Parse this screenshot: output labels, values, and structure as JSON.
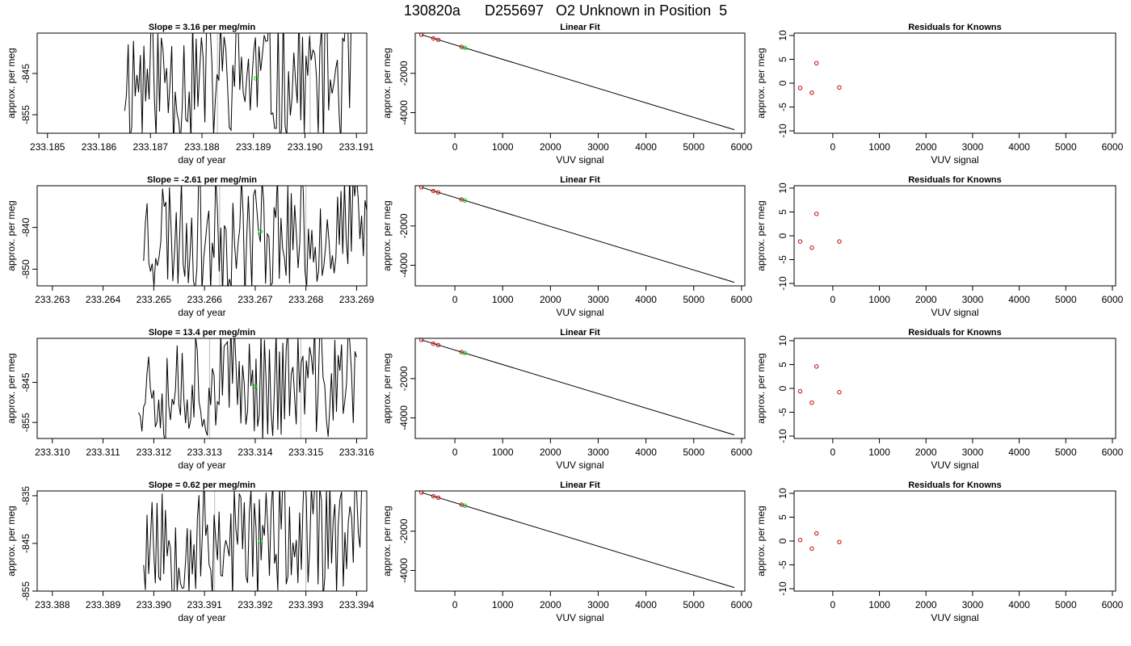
{
  "title": "130820a      D255697   O2 Unknown in Position  5",
  "colors": {
    "ink": "#000000",
    "highlight": "#00cc00",
    "known": "#cc0000",
    "vline": "#bbbbbb"
  },
  "rows": [
    {
      "timeseries": {
        "title": "Slope =  3.16  per meg/min",
        "xlabel": "day of year",
        "ylabel": "approx. per meg",
        "xlim": [
          233.1848,
          233.1912
        ],
        "ylim": [
          -859.5,
          -835.2
        ],
        "xticks": [
          "233.185",
          "233.186",
          "233.187",
          "233.188",
          "233.189",
          "233.190",
          "233.191"
        ],
        "yticks": [
          "-845",
          "-855"
        ],
        "seed": 11,
        "start": 233.1865,
        "end": 233.1909,
        "center": -846,
        "amplitude": 14,
        "vlines": [
          233.1883,
          233.1901
        ],
        "marker": [
          233.18905,
          -846.2
        ]
      },
      "fit": {
        "title": "Linear Fit",
        "xlabel": "VUV signal",
        "ylabel": "approx. per meg"
      },
      "residuals": {
        "title": "Residuals for Knowns",
        "xlabel": "VUV signal",
        "ylabel": "approx. per meg",
        "points": [
          [
            -700,
            -1.0
          ],
          [
            -450,
            -2.0
          ],
          [
            -350,
            4.2
          ],
          [
            140,
            -0.9
          ]
        ]
      }
    },
    {
      "timeseries": {
        "title": "Slope =  -2.61  per meg/min",
        "xlabel": "day of year",
        "ylabel": "approx. per meg",
        "xlim": [
          233.2627,
          233.2692
        ],
        "ylim": [
          -854,
          -830
        ],
        "xticks": [
          "233.263",
          "233.264",
          "233.265",
          "233.266",
          "233.267",
          "233.268",
          "233.269"
        ],
        "yticks": [
          "-840",
          "-850"
        ],
        "seed": 23,
        "start": 233.2648,
        "end": 233.2692,
        "center": -841,
        "amplitude": 12,
        "vlines": [
          233.2663,
          233.268
        ],
        "marker": [
          233.2671,
          -841.0
        ]
      },
      "fit": {
        "title": "Linear Fit",
        "xlabel": "VUV signal",
        "ylabel": "approx. per meg"
      },
      "residuals": {
        "title": "Residuals for Knowns",
        "xlabel": "VUV signal",
        "ylabel": "approx. per meg",
        "points": [
          [
            -700,
            -1.2
          ],
          [
            -450,
            -2.5
          ],
          [
            -350,
            4.6
          ],
          [
            140,
            -1.2
          ]
        ]
      }
    },
    {
      "timeseries": {
        "title": "Slope =  13.4  per meg/min",
        "xlabel": "day of year",
        "ylabel": "approx. per meg",
        "xlim": [
          233.3097,
          233.3162
        ],
        "ylim": [
          -859,
          -834
        ],
        "xticks": [
          "233.310",
          "233.311",
          "233.312",
          "233.313",
          "233.314",
          "233.315",
          "233.316"
        ],
        "yticks": [
          "-845",
          "-855"
        ],
        "seed": 37,
        "start": 233.3117,
        "end": 233.316,
        "center": -845,
        "amplitude": 12,
        "vlines": [
          233.3131,
          233.3149
        ],
        "marker": [
          233.314,
          -846.0
        ]
      },
      "fit": {
        "title": "Linear Fit",
        "xlabel": "VUV signal",
        "ylabel": "approx. per meg"
      },
      "residuals": {
        "title": "Residuals for Knowns",
        "xlabel": "VUV signal",
        "ylabel": "approx. per meg",
        "points": [
          [
            -700,
            -0.6
          ],
          [
            -450,
            -3.0
          ],
          [
            -350,
            4.6
          ],
          [
            140,
            -0.8
          ]
        ]
      }
    },
    {
      "timeseries": {
        "title": "Slope =  0.62  per meg/min",
        "xlabel": "day of year",
        "ylabel": "approx. per meg",
        "xlim": [
          233.3877,
          233.3942
        ],
        "ylim": [
          -855,
          -834
        ],
        "xticks": [
          "233.388",
          "233.389",
          "233.390",
          "233.391",
          "233.392",
          "233.393",
          "233.394"
        ],
        "yticks": [
          "-835",
          "-845",
          "-855"
        ],
        "seed": 53,
        "start": 233.3898,
        "end": 233.3941,
        "center": -844,
        "amplitude": 11,
        "vlines": [
          233.3912,
          233.393
        ],
        "marker": [
          233.3921,
          -844.5
        ]
      },
      "fit": {
        "title": "Linear Fit",
        "xlabel": "VUV signal",
        "ylabel": "approx. per meg"
      },
      "residuals": {
        "title": "Residuals for Knowns",
        "xlabel": "VUV signal",
        "ylabel": "approx. per meg",
        "points": [
          [
            -700,
            0.2
          ],
          [
            -450,
            -1.6
          ],
          [
            -350,
            1.6
          ],
          [
            140,
            -0.2
          ]
        ]
      }
    }
  ],
  "chart_data": [
    {
      "type": "line",
      "panel": "time series",
      "rows": 4,
      "description_values": "per-meg trace vs day of year; one green marker at the unknown's mean",
      "xlabel": "day of year",
      "ylabel": "approx. per meg"
    },
    {
      "type": "line",
      "panel": "Linear Fit",
      "xlabel": "VUV signal",
      "ylabel": "approx. per meg",
      "xlim": [
        -830,
        6070
      ],
      "ylim": [
        -5050,
        50
      ],
      "xticks": [
        0,
        1000,
        2000,
        3000,
        4000,
        5000,
        6000
      ],
      "yticks": [
        -2000,
        -4000
      ],
      "fit_line": [
        [
          -700,
          -30
        ],
        [
          5850,
          -4870
        ]
      ],
      "known_points": [
        [
          -700,
          -30
        ],
        [
          -450,
          -220
        ],
        [
          -350,
          -290
        ],
        [
          140,
          -650
        ]
      ],
      "unknown_point": [
        210,
        -700
      ]
    },
    {
      "type": "scatter",
      "panel": "Residuals for Knowns",
      "xlabel": "VUV signal",
      "ylabel": "approx. per meg",
      "xlim": [
        -830,
        6070
      ],
      "ylim": [
        -10.5,
        10.5
      ],
      "xticks": [
        0,
        1000,
        2000,
        3000,
        4000,
        5000,
        6000
      ],
      "yticks": [
        -10,
        -5,
        0,
        5,
        10
      ]
    }
  ]
}
